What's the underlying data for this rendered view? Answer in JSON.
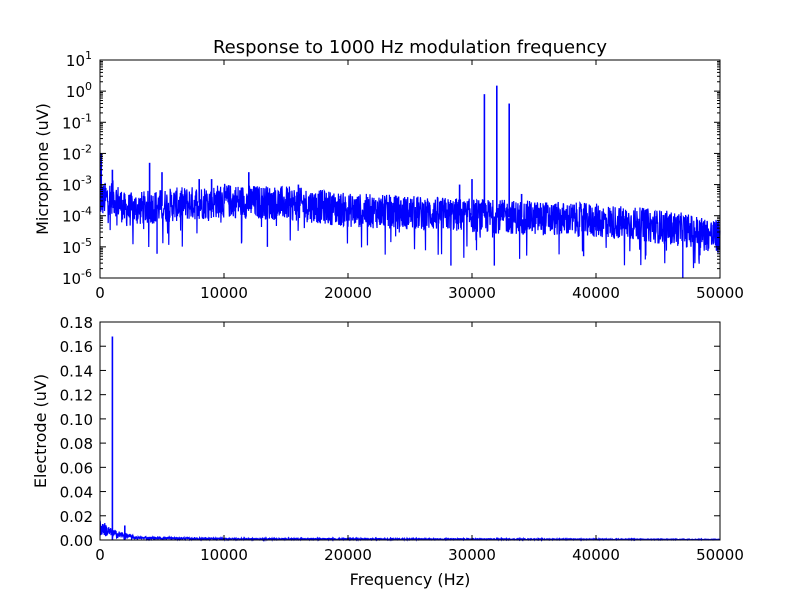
{
  "figure": {
    "title": "Response to 1000 Hz modulation frequency",
    "line_color": "#0000ff",
    "frame_color": "#000000",
    "background": "#ffffff"
  },
  "chart_data": [
    {
      "type": "line",
      "title": "Response to 1000 Hz modulation frequency",
      "xlabel": "",
      "ylabel": "Microphone (uV)",
      "yscale": "log",
      "xlim": [
        0,
        50000
      ],
      "ylim": [
        1e-06,
        10
      ],
      "xticks": [
        0,
        10000,
        20000,
        30000,
        40000,
        50000
      ],
      "xtick_labels": [
        "0",
        "10000",
        "20000",
        "30000",
        "40000",
        "50000"
      ],
      "yticks": [
        1e-06,
        1e-05,
        0.0001,
        0.001,
        0.01,
        0.1,
        1,
        10
      ],
      "ytick_mantissa": [
        "10",
        "10",
        "10",
        "10",
        "10",
        "10",
        "10",
        "10"
      ],
      "ytick_exponents": [
        "-6",
        "-5",
        "-4",
        "-3",
        "-2",
        "-1",
        "0",
        "1"
      ],
      "grid": false,
      "legend": "none",
      "noise_floor": [
        {
          "x": 0,
          "y": 0.0003
        },
        {
          "x": 1000,
          "y": 0.0004
        },
        {
          "x": 2000,
          "y": 0.00015
        },
        {
          "x": 10000,
          "y": 0.0003
        },
        {
          "x": 15000,
          "y": 0.00025
        },
        {
          "x": 20000,
          "y": 0.00015
        },
        {
          "x": 30000,
          "y": 0.0001
        },
        {
          "x": 40000,
          "y": 7e-05
        },
        {
          "x": 50000,
          "y": 2e-05
        }
      ],
      "peaks": [
        {
          "x": 100,
          "y": 0.01
        },
        {
          "x": 1000,
          "y": 0.003
        },
        {
          "x": 4000,
          "y": 0.005
        },
        {
          "x": 5000,
          "y": 0.0025
        },
        {
          "x": 8000,
          "y": 0.0015
        },
        {
          "x": 9000,
          "y": 0.0015
        },
        {
          "x": 12000,
          "y": 0.0025
        },
        {
          "x": 16000,
          "y": 0.001
        },
        {
          "x": 29000,
          "y": 0.001
        },
        {
          "x": 30000,
          "y": 0.0015
        },
        {
          "x": 31000,
          "y": 0.8
        },
        {
          "x": 32000,
          "y": 1.5
        },
        {
          "x": 33000,
          "y": 0.4
        },
        {
          "x": 34000,
          "y": 0.0005
        }
      ],
      "dips": [
        {
          "x": 4600,
          "y": 6e-06
        },
        {
          "x": 13500,
          "y": 1e-05
        },
        {
          "x": 28300,
          "y": 2.5e-06
        },
        {
          "x": 31800,
          "y": 2.5e-06
        },
        {
          "x": 39000,
          "y": 5e-06
        },
        {
          "x": 47000,
          "y": 1e-06
        }
      ]
    },
    {
      "type": "line",
      "title": "",
      "xlabel": "Frequency (Hz)",
      "ylabel": "Electrode (uV)",
      "yscale": "linear",
      "xlim": [
        0,
        50000
      ],
      "ylim": [
        0,
        0.18
      ],
      "xticks": [
        0,
        10000,
        20000,
        30000,
        40000,
        50000
      ],
      "xtick_labels": [
        "0",
        "10000",
        "20000",
        "30000",
        "40000",
        "50000"
      ],
      "yticks": [
        0,
        0.02,
        0.04,
        0.06,
        0.08,
        0.1,
        0.12,
        0.14,
        0.16,
        0.18
      ],
      "ytick_labels": [
        "0.00",
        "0.02",
        "0.04",
        "0.06",
        "0.08",
        "0.10",
        "0.12",
        "0.14",
        "0.16",
        "0.18"
      ],
      "grid": false,
      "legend": "none",
      "baseline": [
        {
          "x": 0,
          "y": 0.012
        },
        {
          "x": 1000,
          "y": 0.006
        },
        {
          "x": 3000,
          "y": 0.002
        },
        {
          "x": 10000,
          "y": 0.001
        },
        {
          "x": 50000,
          "y": 0.0005
        }
      ],
      "peaks": [
        {
          "x": 1000,
          "y": 0.168
        },
        {
          "x": 2000,
          "y": 0.012
        },
        {
          "x": 32000,
          "y": 0.002
        }
      ]
    }
  ]
}
